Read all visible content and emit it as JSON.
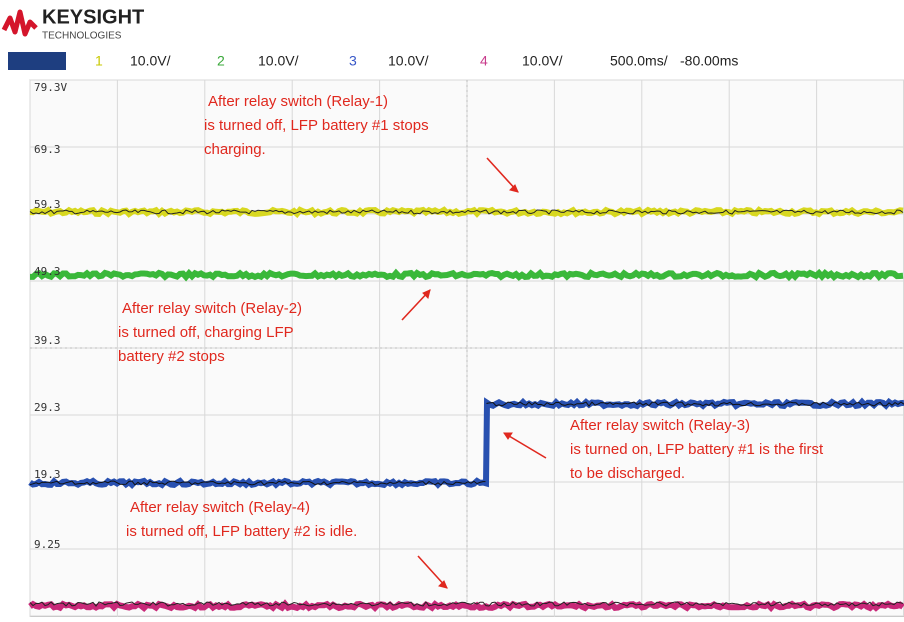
{
  "header": {
    "logo": "KEYSIGHT",
    "logo_sub": "TECHNOLOGIES"
  },
  "channels": [
    {
      "number": "1",
      "scale": "10.0V/"
    },
    {
      "number": "2",
      "scale": "10.0V/"
    },
    {
      "number": "3",
      "scale": "10.0V/"
    },
    {
      "number": "4",
      "scale": "10.0V/"
    }
  ],
  "timebase": "500.0ms/",
  "delay": "-80.00ms",
  "y_labels": [
    "79.3V",
    "69.3",
    "59.3",
    "49.3",
    "39.3",
    "29.3",
    "19.3",
    "9.25"
  ],
  "annotations": [
    {
      "lines": [
        "After relay switch (Relay-1)",
        "is turned off, LFP battery #1 stops",
        "charging."
      ]
    },
    {
      "lines": [
        "After relay switch (Relay-2)",
        "is turned off, charging LFP",
        "battery #2 stops"
      ]
    },
    {
      "lines": [
        "After relay switch (Relay-3)",
        "is turned on, LFP battery #1 is the first",
        "to be discharged."
      ]
    },
    {
      "lines": [
        "After relay switch (Relay-4)",
        "is turned off, LFP battery #2  is idle."
      ]
    }
  ]
}
